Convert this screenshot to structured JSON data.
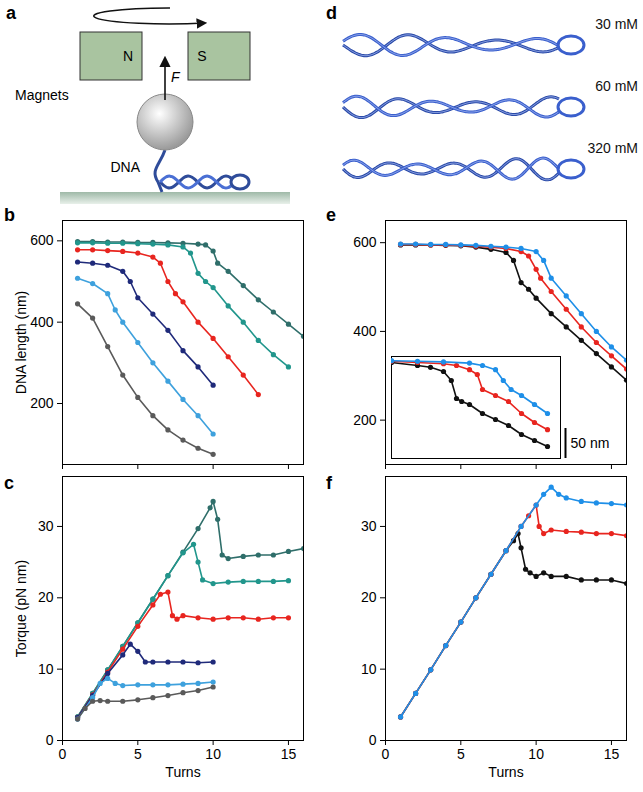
{
  "diagrams": [
    {
      "panel_label": "a",
      "labels": {
        "north": "N",
        "south": "S",
        "force": "F",
        "magnets": "Magnets",
        "dna": "DNA"
      }
    },
    {
      "panel_label": "d",
      "labels": [
        "30 mM",
        "60 mM",
        "320 mM"
      ]
    }
  ],
  "chart_data": [
    {
      "type": "line",
      "panel_label": "b",
      "y_label": "DNA length (nm)",
      "xlim": [
        0,
        16
      ],
      "xticks": [
        0,
        5,
        10,
        15
      ],
      "ylim": [
        50,
        650
      ],
      "yticks": [
        200,
        400,
        600
      ],
      "tick_labels": "y",
      "marker": "circle",
      "series": [
        {
          "color": "#2f6e6a",
          "x": [
            1,
            2,
            3,
            4,
            5,
            6,
            7,
            8,
            9,
            9.5,
            10,
            10.3,
            11,
            12,
            13,
            14,
            15,
            16
          ],
          "values": [
            598,
            598,
            597,
            597,
            596,
            596,
            595,
            594,
            592,
            590,
            575,
            545,
            525,
            490,
            455,
            425,
            395,
            365
          ]
        },
        {
          "color": "#21968c",
          "x": [
            1,
            2,
            3,
            4,
            5,
            6,
            7,
            8,
            8.5,
            9,
            9.5,
            10,
            11,
            12,
            13,
            14,
            15
          ],
          "values": [
            595,
            595,
            594,
            594,
            593,
            592,
            590,
            585,
            570,
            520,
            500,
            485,
            440,
            400,
            355,
            320,
            290
          ]
        },
        {
          "color": "#e8251f",
          "x": [
            1,
            2,
            3,
            4,
            5,
            6,
            6.5,
            7,
            7.5,
            8,
            9,
            10,
            11,
            12,
            13
          ],
          "values": [
            578,
            578,
            576,
            574,
            570,
            560,
            545,
            500,
            470,
            450,
            400,
            360,
            315,
            270,
            222
          ]
        },
        {
          "color": "#1f2a7a",
          "x": [
            1,
            2,
            3,
            4,
            4.5,
            5,
            6,
            7,
            8,
            9,
            10
          ],
          "values": [
            548,
            545,
            540,
            525,
            500,
            460,
            420,
            380,
            330,
            290,
            245
          ]
        },
        {
          "color": "#3ea1dd",
          "x": [
            1,
            2,
            3,
            3.5,
            4,
            5,
            6,
            7,
            8,
            9,
            10
          ],
          "values": [
            508,
            495,
            470,
            430,
            400,
            350,
            300,
            255,
            210,
            170,
            125
          ]
        },
        {
          "color": "#5a5a5a",
          "x": [
            1,
            2,
            3,
            4,
            5,
            6,
            7,
            8,
            9,
            10
          ],
          "values": [
            445,
            410,
            340,
            270,
            215,
            170,
            135,
            110,
            90,
            75
          ]
        }
      ]
    },
    {
      "type": "line",
      "panel_label": "c",
      "x_label": "Turns",
      "y_label": "Torque (pN nm)",
      "xlim": [
        0,
        16
      ],
      "xticks": [
        0,
        5,
        10,
        15
      ],
      "ylim": [
        0,
        37
      ],
      "yticks": [
        0,
        10,
        20,
        30
      ],
      "marker": "circle",
      "series": [
        {
          "color": "#2f6e6a",
          "x": [
            1,
            2,
            3,
            4,
            5,
            6,
            7,
            8,
            9,
            9.8,
            10,
            10.3,
            10.6,
            11,
            12,
            13,
            14,
            15,
            16
          ],
          "values": [
            3.3,
            6.6,
            9.9,
            13.2,
            16.5,
            19.8,
            23.1,
            26.4,
            29.7,
            32.6,
            33.5,
            31,
            26,
            25.5,
            25.8,
            26,
            26,
            26.5,
            26.9
          ]
        },
        {
          "color": "#21968c",
          "x": [
            1,
            2,
            3,
            4,
            5,
            6,
            7,
            8,
            8.7,
            9,
            9.3,
            10,
            11,
            12,
            13,
            14,
            15
          ],
          "values": [
            3.3,
            6.6,
            9.9,
            13.2,
            16.5,
            19.8,
            23.1,
            26.3,
            27.5,
            25,
            22.5,
            22,
            22.2,
            22.3,
            22.3,
            22.3,
            22.4
          ]
        },
        {
          "color": "#e8251f",
          "x": [
            1,
            2,
            3,
            4,
            5,
            6,
            6.5,
            7,
            7.3,
            7.6,
            8,
            9,
            10,
            11,
            12,
            13,
            14,
            15
          ],
          "values": [
            3.2,
            6.4,
            9.6,
            12.8,
            16,
            19,
            20.5,
            20.8,
            17.5,
            17,
            17.5,
            17.2,
            17,
            17.2,
            17.2,
            17,
            17.2,
            17.2
          ]
        },
        {
          "color": "#1f2a7a",
          "x": [
            1,
            2,
            3,
            4,
            4.5,
            5,
            5.5,
            6,
            7,
            8,
            9,
            10
          ],
          "values": [
            3.2,
            6.3,
            9.4,
            12,
            13.5,
            12.5,
            11,
            11,
            11,
            11,
            10.9,
            11
          ]
        },
        {
          "color": "#3ea1dd",
          "x": [
            1,
            2,
            2.5,
            3,
            3.5,
            4,
            5,
            6,
            7,
            8,
            9,
            10
          ],
          "values": [
            3,
            6,
            8,
            8.7,
            8,
            7.7,
            7.8,
            7.8,
            7.8,
            7.9,
            8,
            8.2
          ]
        },
        {
          "color": "#5a5a5a",
          "x": [
            1,
            1.5,
            2,
            2.5,
            3,
            4,
            5,
            6,
            7,
            8,
            9,
            10
          ],
          "values": [
            3,
            4.5,
            5.5,
            5.6,
            5.5,
            5.5,
            5.7,
            6,
            6.3,
            6.7,
            7,
            7.5
          ]
        }
      ]
    },
    {
      "type": "line",
      "panel_label": "e",
      "xlim": [
        0,
        16
      ],
      "xticks": [
        0,
        5,
        10,
        15
      ],
      "ylim": [
        100,
        650
      ],
      "yticks": [
        200,
        400,
        600
      ],
      "tick_labels": "y",
      "marker": "circle",
      "series": [
        {
          "color": "#111111",
          "x": [
            1,
            2,
            3,
            4,
            5,
            6,
            7,
            8,
            8.5,
            9,
            9.5,
            10,
            11,
            12,
            13,
            14,
            15,
            16
          ],
          "values": [
            595,
            595,
            595,
            594,
            593,
            590,
            585,
            578,
            560,
            510,
            495,
            475,
            440,
            410,
            380,
            350,
            320,
            290
          ]
        },
        {
          "color": "#e8251f",
          "x": [
            1,
            2,
            3,
            4,
            5,
            6,
            7,
            8,
            9,
            9.5,
            10,
            10.3,
            11,
            12,
            13,
            14,
            15,
            16
          ],
          "values": [
            596,
            596,
            595,
            595,
            594,
            592,
            590,
            587,
            580,
            570,
            540,
            520,
            490,
            450,
            410,
            375,
            345,
            315
          ]
        },
        {
          "color": "#1e8fe8",
          "x": [
            1,
            2,
            3,
            4,
            5,
            6,
            7,
            8,
            9,
            10,
            10.5,
            11,
            12,
            13,
            14,
            15,
            16
          ],
          "values": [
            597,
            597,
            596,
            596,
            595,
            594,
            592,
            590,
            587,
            580,
            560,
            520,
            480,
            440,
            400,
            365,
            335
          ]
        }
      ],
      "inset": {
        "type": "line",
        "xlim": [
          6,
          12.5
        ],
        "ylim": [
          430,
          600
        ],
        "tick_labels": false,
        "marker": "circle",
        "scale_bar": {
          "value": 50,
          "label": "50 nm"
        },
        "series": [
          {
            "color": "#111111",
            "x": [
              6,
              7,
              7.5,
              8,
              8.3,
              8.5,
              8.7,
              9,
              9.5,
              10,
              10.5,
              11,
              11.5,
              12
            ],
            "values": [
              590,
              585,
              582,
              575,
              560,
              530,
              525,
              520,
              505,
              495,
              485,
              470,
              460,
              450
            ]
          },
          {
            "color": "#e8251f",
            "x": [
              6,
              7,
              8,
              8.5,
              9,
              9.3,
              9.5,
              10,
              10.5,
              11,
              11.5,
              12
            ],
            "values": [
              592,
              590,
              588,
              585,
              578,
              570,
              545,
              535,
              525,
              505,
              490,
              478
            ]
          },
          {
            "color": "#1e8fe8",
            "x": [
              6,
              7,
              8,
              9,
              9.5,
              10,
              10.3,
              10.6,
              11,
              11.5,
              12
            ],
            "values": [
              593,
              592,
              591,
              589,
              585,
              578,
              560,
              545,
              535,
              520,
              505
            ]
          }
        ]
      }
    },
    {
      "type": "line",
      "panel_label": "f",
      "x_label": "Turns",
      "xlim": [
        0,
        16
      ],
      "xticks": [
        0,
        5,
        10,
        15
      ],
      "ylim": [
        0,
        37
      ],
      "yticks": [
        0,
        10,
        20,
        30
      ],
      "marker": "circle",
      "series": [
        {
          "color": "#111111",
          "x": [
            1,
            2,
            3,
            4,
            5,
            6,
            7,
            8,
            8.5,
            8.8,
            9,
            9.3,
            9.6,
            10,
            10.5,
            11,
            12,
            13,
            14,
            15,
            16
          ],
          "values": [
            3.3,
            6.6,
            9.9,
            13.3,
            16.6,
            20,
            23.3,
            26.6,
            28,
            29,
            27,
            24,
            23.5,
            23,
            23.5,
            23,
            23,
            22.5,
            22.5,
            22.5,
            22
          ]
        },
        {
          "color": "#e8251f",
          "x": [
            1,
            2,
            3,
            4,
            5,
            6,
            7,
            8,
            9,
            9.5,
            10,
            10.2,
            10.5,
            11,
            12,
            13,
            14,
            15,
            16
          ],
          "values": [
            3.3,
            6.6,
            9.9,
            13.3,
            16.6,
            20,
            23.3,
            26.6,
            30,
            31.5,
            33,
            30,
            29,
            29.5,
            29.3,
            29.2,
            29,
            29,
            28.7
          ]
        },
        {
          "color": "#1e8fe8",
          "x": [
            1,
            2,
            3,
            4,
            5,
            6,
            7,
            8,
            9,
            10,
            10.5,
            11,
            11.5,
            12,
            13,
            14,
            15,
            16
          ],
          "values": [
            3.3,
            6.6,
            9.9,
            13.3,
            16.6,
            20,
            23.3,
            26.6,
            30,
            33,
            34.5,
            35.5,
            34.5,
            34,
            33.5,
            33.3,
            33.2,
            33
          ]
        }
      ]
    }
  ]
}
